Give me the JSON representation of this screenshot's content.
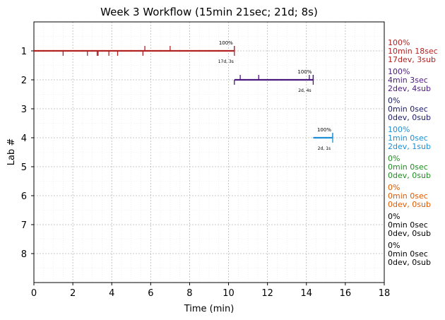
{
  "chart_data": {
    "type": "line",
    "title": "Week 3 Workflow (15min 21sec; 21d; 8s)",
    "xlabel": "Time (min)",
    "ylabel": "Lab #",
    "xlim": [
      0,
      18
    ],
    "ylim": [
      9,
      0
    ],
    "x_ticks": [
      0,
      2,
      4,
      6,
      8,
      10,
      12,
      14,
      16,
      18
    ],
    "y_ticks": [
      1,
      2,
      3,
      4,
      5,
      6,
      7,
      8
    ],
    "grid": true,
    "series": [
      {
        "lab": 1,
        "color": "#b22222",
        "start": 0.0,
        "end": 10.3,
        "dev_marks": [
          1.5,
          2.75,
          3.25,
          3.3,
          3.85,
          4.3,
          5.6
        ],
        "sub_marks": [
          5.7,
          7.0,
          10.3
        ],
        "pct_label": "100%",
        "sub_label": "17d, 3s",
        "side_text": [
          "100%",
          "10min 18sec",
          "17dev, 3sub"
        ]
      },
      {
        "lab": 2,
        "color": "#4b1a7f",
        "start": 10.3,
        "end": 14.35,
        "dev_marks": [
          10.3
        ],
        "sub_marks": [
          10.6,
          11.55,
          14.15,
          14.35
        ],
        "pct_label": "100%",
        "sub_label": "2d, 4s",
        "side_text": [
          "100%",
          "4min 3sec",
          "2dev, 4sub"
        ]
      },
      {
        "lab": 3,
        "color": "#1a1a66",
        "start": null,
        "end": null,
        "dev_marks": [],
        "sub_marks": [],
        "pct_label": "",
        "sub_label": "",
        "side_text": [
          "0%",
          "0min 0sec",
          "0dev, 0sub"
        ]
      },
      {
        "lab": 4,
        "color": "#1e8fd5",
        "start": 14.35,
        "end": 15.35,
        "dev_marks": [],
        "sub_marks": [
          15.35
        ],
        "pct_label": "100%",
        "sub_label": "2d, 1s",
        "side_text": [
          "100%",
          "1min 0sec",
          "2dev, 1sub"
        ]
      },
      {
        "lab": 5,
        "color": "#228b22",
        "start": null,
        "end": null,
        "dev_marks": [],
        "sub_marks": [],
        "pct_label": "",
        "sub_label": "",
        "side_text": [
          "0%",
          "0min 0sec",
          "0dev, 0sub"
        ]
      },
      {
        "lab": 6,
        "color": "#e05a00",
        "start": null,
        "end": null,
        "dev_marks": [],
        "sub_marks": [],
        "pct_label": "",
        "sub_label": "",
        "side_text": [
          "0%",
          "0min 0sec",
          "0dev, 0sub"
        ]
      },
      {
        "lab": 7,
        "color": "#000000",
        "start": null,
        "end": null,
        "dev_marks": [],
        "sub_marks": [],
        "pct_label": "",
        "sub_label": "",
        "side_text": [
          "0%",
          "0min 0sec",
          "0dev, 0sub"
        ]
      },
      {
        "lab": 8,
        "color": "#000000",
        "start": null,
        "end": null,
        "dev_marks": [],
        "sub_marks": [],
        "pct_label": "",
        "sub_label": "",
        "side_text": [
          "0%",
          "0min 0sec",
          "0dev, 0sub"
        ]
      }
    ]
  }
}
